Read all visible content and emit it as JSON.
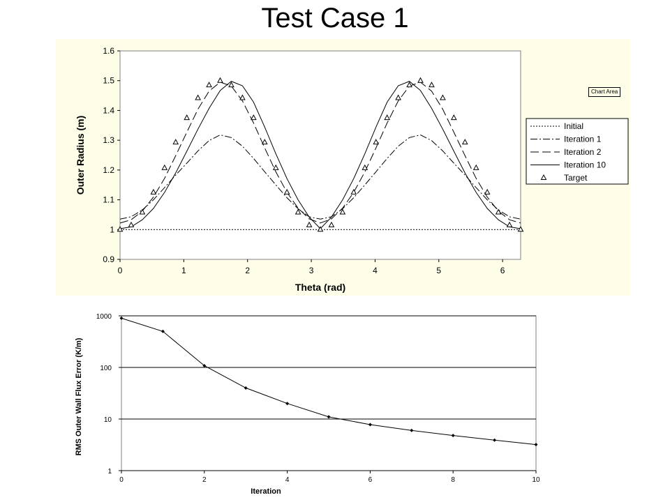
{
  "slide_title": "Test Case 1",
  "tooltip": "Chart Area",
  "chart_data": [
    {
      "type": "line",
      "xlabel": "Theta (rad)",
      "ylabel": "Outer Radius (m)",
      "xlim": [
        0,
        6.2832
      ],
      "ylim": [
        0.9,
        1.6
      ],
      "x_ticks": [
        0,
        1,
        2,
        3,
        4,
        5,
        6
      ],
      "y_ticks": [
        0.9,
        1,
        1.1,
        1.2,
        1.3,
        1.4,
        1.5,
        1.6
      ],
      "legend_position": "right",
      "theta": [
        0,
        0.1745,
        0.3491,
        0.5236,
        0.6981,
        0.8727,
        1.0472,
        1.2217,
        1.3963,
        1.5708,
        1.7453,
        1.9199,
        2.0944,
        2.2689,
        2.4435,
        2.618,
        2.7925,
        2.967,
        3.1416,
        3.3161,
        3.4907,
        3.6652,
        3.8397,
        4.0143,
        4.1888,
        4.3633,
        4.5379,
        4.7124,
        4.8869,
        5.0615,
        5.236,
        5.4105,
        5.5851,
        5.7596,
        5.9341,
        6.1087,
        6.2832
      ],
      "series": [
        {
          "name": "Initial",
          "style": "dotted",
          "values": [
            1,
            1,
            1,
            1,
            1,
            1,
            1,
            1,
            1,
            1,
            1,
            1,
            1,
            1,
            1,
            1,
            1,
            1,
            1,
            1,
            1,
            1,
            1,
            1,
            1,
            1,
            1,
            1,
            1,
            1,
            1,
            1,
            1,
            1,
            1,
            1,
            1
          ]
        },
        {
          "name": "Iteration 1",
          "style": "dash-dot",
          "values": [
            1.035,
            1.043,
            1.066,
            1.1,
            1.141,
            1.183,
            1.223,
            1.264,
            1.299,
            1.318,
            1.309,
            1.28,
            1.239,
            1.194,
            1.15,
            1.107,
            1.07,
            1.043,
            1.035,
            1.043,
            1.07,
            1.107,
            1.15,
            1.194,
            1.239,
            1.28,
            1.309,
            1.318,
            1.299,
            1.264,
            1.223,
            1.183,
            1.141,
            1.1,
            1.066,
            1.043,
            1.035
          ]
        },
        {
          "name": "Iteration 2",
          "style": "long-dash",
          "values": [
            1.022,
            1.033,
            1.062,
            1.109,
            1.172,
            1.248,
            1.327,
            1.404,
            1.465,
            1.495,
            1.482,
            1.432,
            1.358,
            1.274,
            1.194,
            1.125,
            1.072,
            1.036,
            1.022,
            1.036,
            1.072,
            1.125,
            1.194,
            1.274,
            1.358,
            1.432,
            1.482,
            1.495,
            1.465,
            1.404,
            1.327,
            1.248,
            1.172,
            1.109,
            1.062,
            1.033,
            1.022
          ]
        },
        {
          "name": "Iteration 10",
          "style": "solid",
          "values": [
            1.003,
            1.009,
            1.033,
            1.071,
            1.125,
            1.19,
            1.263,
            1.337,
            1.407,
            1.467,
            1.498,
            1.483,
            1.428,
            1.344,
            1.255,
            1.171,
            1.1,
            1.042,
            1.003,
            1.042,
            1.1,
            1.171,
            1.255,
            1.344,
            1.428,
            1.483,
            1.498,
            1.467,
            1.407,
            1.337,
            1.263,
            1.19,
            1.125,
            1.071,
            1.033,
            1.009,
            1.003
          ]
        },
        {
          "name": "Target",
          "style": "triangle-markers",
          "values": [
            1,
            1.015,
            1.058,
            1.125,
            1.207,
            1.293,
            1.375,
            1.442,
            1.485,
            1.5,
            1.485,
            1.442,
            1.375,
            1.293,
            1.207,
            1.125,
            1.058,
            1.015,
            1,
            1.015,
            1.058,
            1.125,
            1.207,
            1.293,
            1.375,
            1.442,
            1.485,
            1.5,
            1.485,
            1.442,
            1.375,
            1.293,
            1.207,
            1.125,
            1.058,
            1.015,
            1
          ]
        }
      ]
    },
    {
      "type": "line",
      "scale": "log",
      "xlabel": "Iteration",
      "ylabel": "RMS Outer Wall Flux Error (K/m)",
      "xlim": [
        0,
        10
      ],
      "ylim": [
        1,
        1000
      ],
      "x_ticks": [
        0,
        2,
        4,
        6,
        8,
        10
      ],
      "y_ticks": [
        1,
        10,
        100,
        1000
      ],
      "grid": "horizontal",
      "x": [
        0,
        1,
        2,
        3,
        4,
        5,
        6,
        7,
        8,
        9,
        10
      ],
      "values": [
        900,
        500,
        108,
        40,
        20,
        11,
        7.8,
        6,
        4.8,
        3.9,
        3.2
      ]
    }
  ]
}
